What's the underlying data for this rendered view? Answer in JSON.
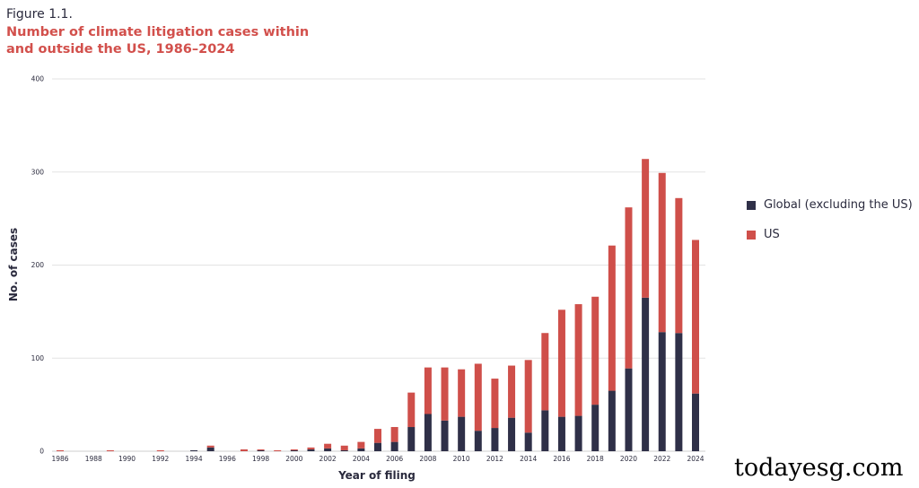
{
  "figure_label": "Figure 1.1.",
  "title": "Number of climate litigation cases within and outside the US, 1986–2024",
  "watermark": "todayesg.com",
  "colors": {
    "global": "#2f3048",
    "us": "#cf4f4a",
    "grid": "#e3e3e3",
    "text": "#2a2a3d"
  },
  "chart_data": {
    "type": "bar",
    "stacked": true,
    "title": "Number of climate litigation cases within and outside the US, 1986–2024",
    "xlabel": "Year of filing",
    "ylabel": "No. of cases",
    "ylim": [
      0,
      400
    ],
    "yticks": [
      0,
      100,
      200,
      300,
      400
    ],
    "xtick_labels": [
      "1986",
      "1988",
      "1990",
      "1992",
      "1994",
      "1996",
      "1998",
      "2000",
      "2002",
      "2004",
      "2006",
      "2008",
      "2010",
      "2012",
      "2014",
      "2016",
      "2018",
      "2020",
      "2022",
      "2024"
    ],
    "categories": [
      1986,
      1987,
      1988,
      1989,
      1990,
      1991,
      1992,
      1993,
      1994,
      1995,
      1996,
      1997,
      1998,
      1999,
      2000,
      2001,
      2002,
      2003,
      2004,
      2005,
      2006,
      2007,
      2008,
      2009,
      2010,
      2011,
      2012,
      2013,
      2014,
      2015,
      2016,
      2017,
      2018,
      2019,
      2020,
      2021,
      2022,
      2023,
      2024
    ],
    "series": [
      {
        "name": "Global (excluding the US)",
        "key": "global",
        "values": [
          0,
          0,
          0,
          0,
          0,
          0,
          0,
          0,
          1,
          4,
          0,
          0,
          1,
          0,
          1,
          2,
          3,
          1,
          3,
          9,
          10,
          26,
          40,
          33,
          37,
          22,
          25,
          36,
          20,
          44,
          37,
          38,
          50,
          65,
          89,
          165,
          128,
          127,
          62
        ]
      },
      {
        "name": "US",
        "key": "us",
        "values": [
          1,
          0,
          0,
          1,
          0,
          0,
          1,
          0,
          0,
          2,
          0,
          2,
          1,
          1,
          1,
          2,
          5,
          5,
          7,
          15,
          16,
          37,
          50,
          57,
          51,
          72,
          53,
          56,
          78,
          83,
          115,
          120,
          116,
          156,
          173,
          149,
          171,
          145,
          165
        ]
      }
    ],
    "legend_position": "right"
  }
}
